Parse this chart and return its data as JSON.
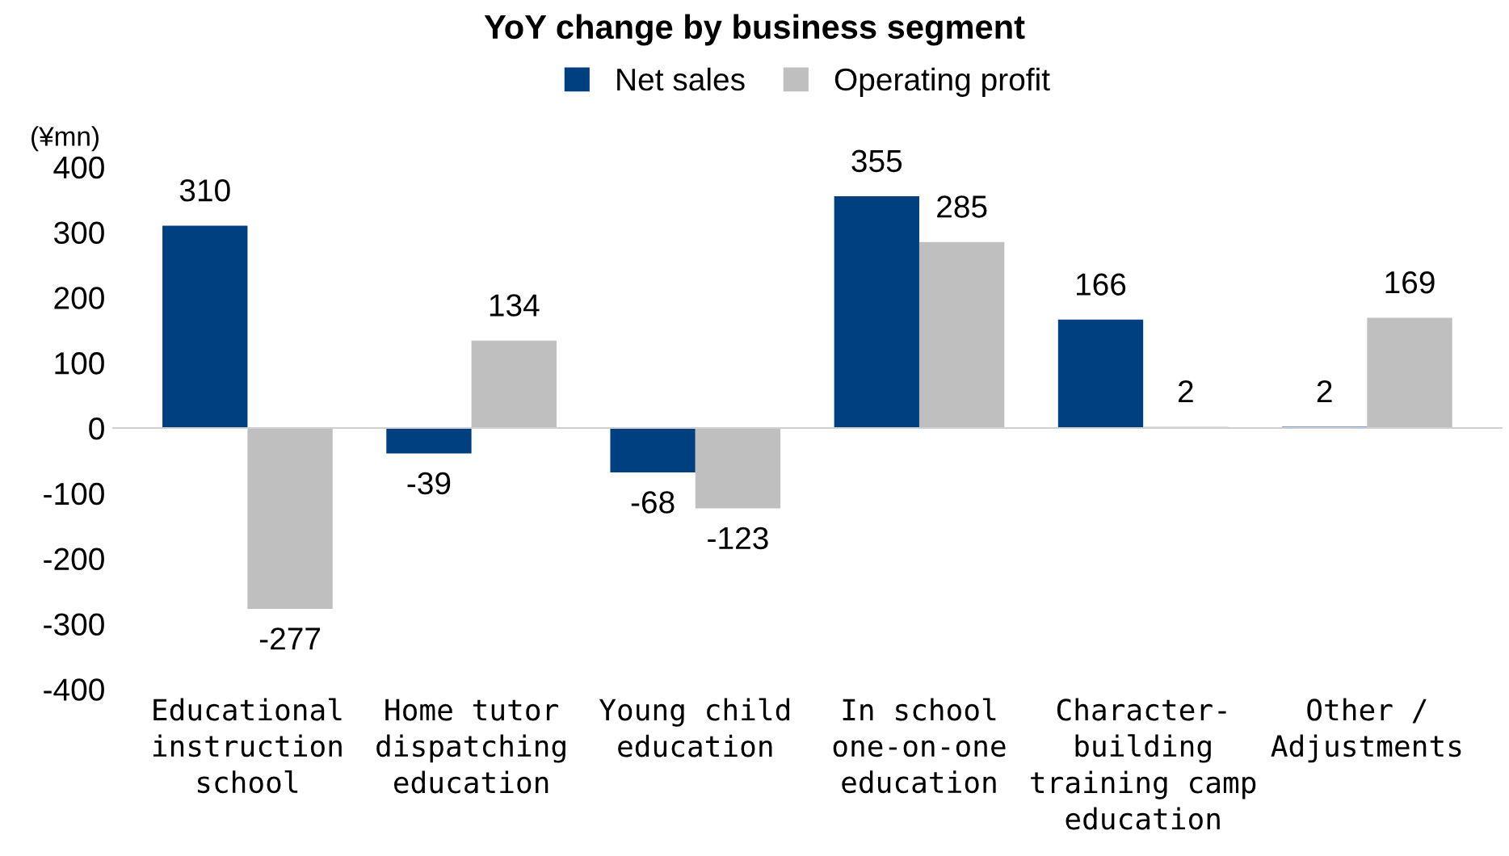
{
  "chart_data": {
    "type": "bar",
    "title": "YoY change by business segment",
    "ylabel": "(¥mn)",
    "categories": [
      "Educational\ninstruction\nschool",
      "Home tutor\ndispatching\neducation",
      "Young child\neducation",
      "In school\none-on-one\neducation",
      "Character-\nbuilding\ntraining camp\neducation",
      "Other /\nAdjustments"
    ],
    "series": [
      {
        "name": "Net sales",
        "color": "#003f80",
        "values": [
          310,
          -39,
          -68,
          355,
          166,
          2
        ]
      },
      {
        "name": "Operating profit",
        "color": "#bfbfbf",
        "values": [
          -277,
          134,
          -123,
          285,
          2,
          169
        ]
      }
    ],
    "ylim": [
      -400,
      400
    ],
    "yticks": [
      -400,
      -300,
      -200,
      -100,
      0,
      100,
      200,
      300,
      400
    ],
    "data_labels": true,
    "legend": "top"
  }
}
